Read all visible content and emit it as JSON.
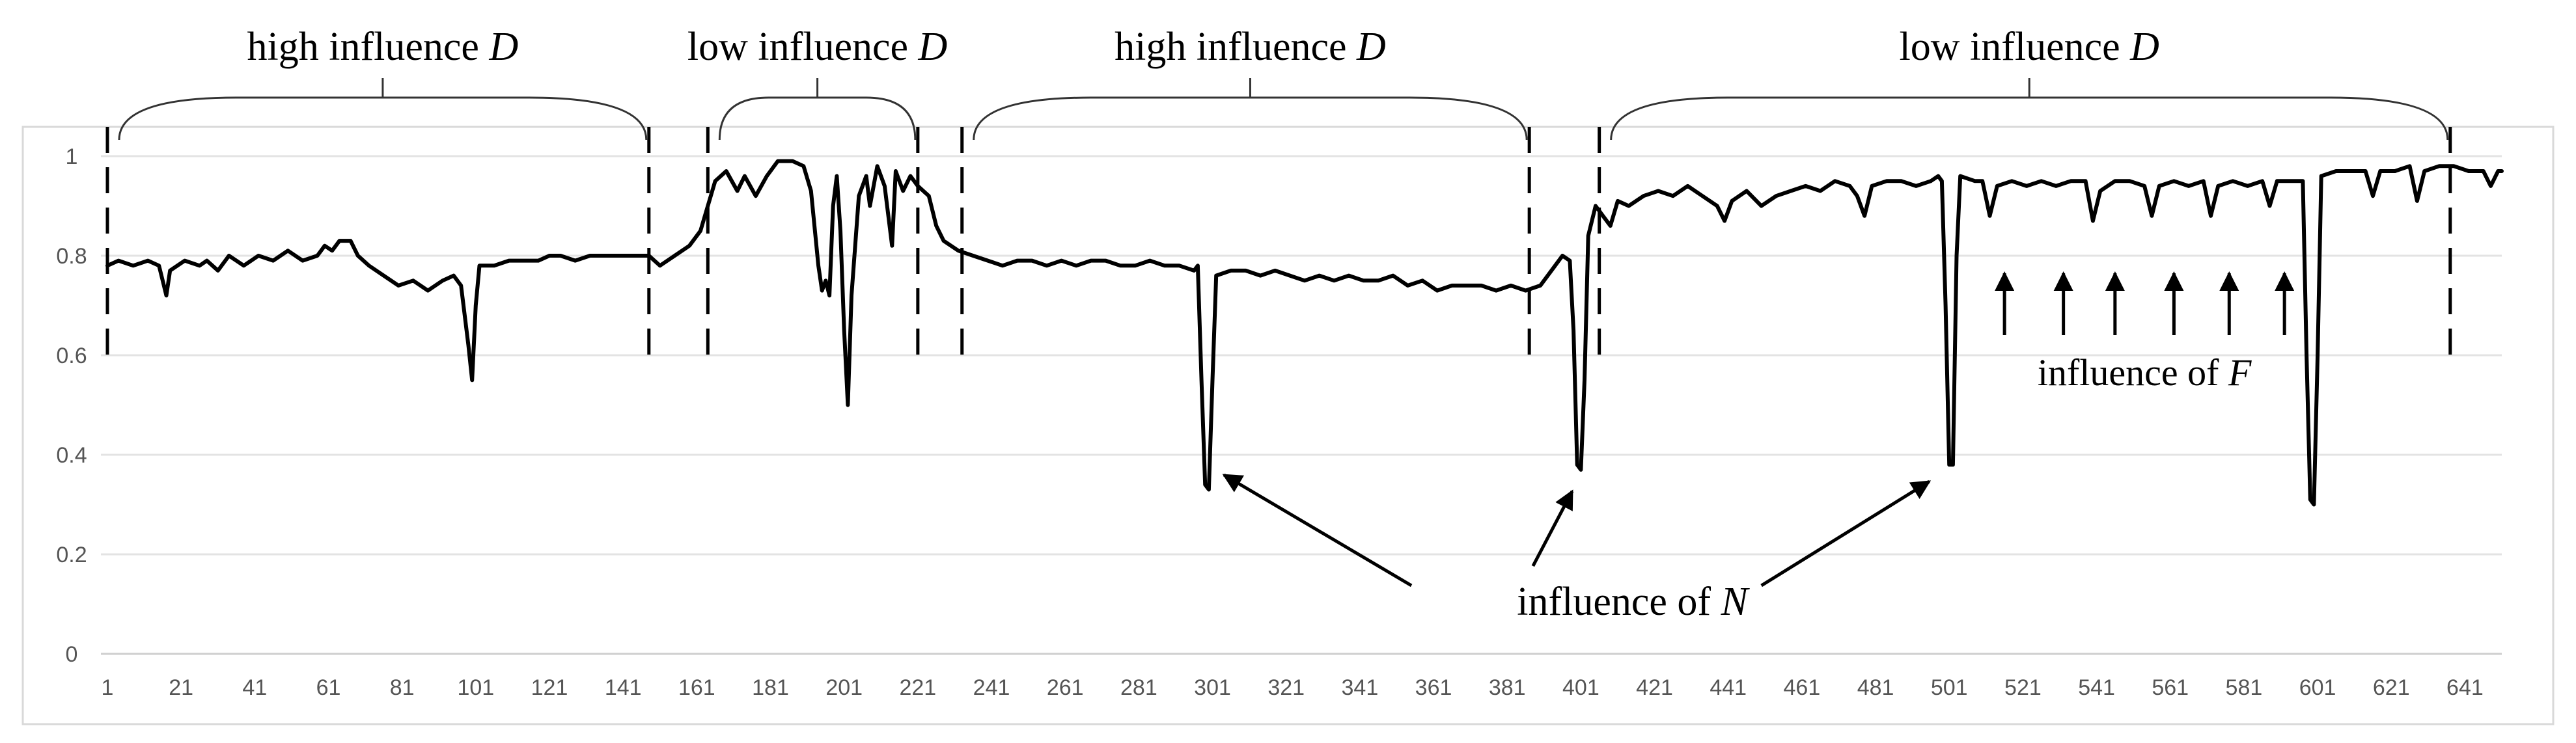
{
  "chart_data": {
    "type": "line",
    "title": "",
    "xlabel": "",
    "ylabel": "",
    "xlim": [
      1,
      651
    ],
    "ylim": [
      0,
      1.05
    ],
    "grid": true,
    "yticks": [
      "0",
      "0.2",
      "0.4",
      "0.6",
      "0.8",
      "1"
    ],
    "xticks": [
      "1",
      "21",
      "41",
      "61",
      "81",
      "101",
      "121",
      "141",
      "161",
      "181",
      "201",
      "221",
      "241",
      "261",
      "281",
      "301",
      "321",
      "341",
      "361",
      "381",
      "401",
      "421",
      "441",
      "461",
      "481",
      "501",
      "521",
      "541",
      "561",
      "581",
      "601",
      "621",
      "641"
    ],
    "series": [
      {
        "points": [
          [
            1,
            0.78
          ],
          [
            4,
            0.79
          ],
          [
            8,
            0.78
          ],
          [
            12,
            0.79
          ],
          [
            15,
            0.78
          ],
          [
            16,
            0.75
          ],
          [
            17,
            0.72
          ],
          [
            18,
            0.77
          ],
          [
            22,
            0.79
          ],
          [
            26,
            0.78
          ],
          [
            28,
            0.79
          ],
          [
            31,
            0.77
          ],
          [
            34,
            0.8
          ],
          [
            38,
            0.78
          ],
          [
            42,
            0.8
          ],
          [
            46,
            0.79
          ],
          [
            50,
            0.81
          ],
          [
            54,
            0.79
          ],
          [
            58,
            0.8
          ],
          [
            60,
            0.82
          ],
          [
            62,
            0.81
          ],
          [
            64,
            0.83
          ],
          [
            67,
            0.83
          ],
          [
            69,
            0.8
          ],
          [
            72,
            0.78
          ],
          [
            76,
            0.76
          ],
          [
            80,
            0.74
          ],
          [
            84,
            0.75
          ],
          [
            88,
            0.73
          ],
          [
            92,
            0.75
          ],
          [
            95,
            0.76
          ],
          [
            97,
            0.74
          ],
          [
            99,
            0.62
          ],
          [
            100,
            0.55
          ],
          [
            101,
            0.7
          ],
          [
            102,
            0.78
          ],
          [
            106,
            0.78
          ],
          [
            110,
            0.79
          ],
          [
            114,
            0.79
          ],
          [
            118,
            0.79
          ],
          [
            121,
            0.8
          ],
          [
            124,
            0.8
          ],
          [
            128,
            0.79
          ],
          [
            132,
            0.8
          ],
          [
            136,
            0.8
          ],
          [
            140,
            0.8
          ],
          [
            145,
            0.8
          ],
          [
            148,
            0.8
          ],
          [
            151,
            0.78
          ],
          [
            155,
            0.8
          ],
          [
            159,
            0.82
          ],
          [
            162,
            0.85
          ],
          [
            164,
            0.9
          ],
          [
            166,
            0.95
          ],
          [
            169,
            0.97
          ],
          [
            172,
            0.93
          ],
          [
            174,
            0.96
          ],
          [
            177,
            0.92
          ],
          [
            180,
            0.96
          ],
          [
            183,
            0.99
          ],
          [
            187,
            0.99
          ],
          [
            190,
            0.98
          ],
          [
            192,
            0.93
          ],
          [
            194,
            0.78
          ],
          [
            195,
            0.73
          ],
          [
            196,
            0.75
          ],
          [
            197,
            0.72
          ],
          [
            198,
            0.9
          ],
          [
            199,
            0.96
          ],
          [
            200,
            0.85
          ],
          [
            201,
            0.65
          ],
          [
            202,
            0.5
          ],
          [
            203,
            0.72
          ],
          [
            205,
            0.92
          ],
          [
            207,
            0.96
          ],
          [
            208,
            0.9
          ],
          [
            210,
            0.98
          ],
          [
            212,
            0.94
          ],
          [
            214,
            0.82
          ],
          [
            215,
            0.97
          ],
          [
            217,
            0.93
          ],
          [
            219,
            0.96
          ],
          [
            221,
            0.94
          ],
          [
            224,
            0.92
          ],
          [
            226,
            0.86
          ],
          [
            228,
            0.83
          ],
          [
            232,
            0.81
          ],
          [
            236,
            0.8
          ],
          [
            240,
            0.79
          ],
          [
            244,
            0.78
          ],
          [
            248,
            0.79
          ],
          [
            252,
            0.79
          ],
          [
            256,
            0.78
          ],
          [
            260,
            0.79
          ],
          [
            264,
            0.78
          ],
          [
            268,
            0.79
          ],
          [
            272,
            0.79
          ],
          [
            276,
            0.78
          ],
          [
            280,
            0.78
          ],
          [
            284,
            0.79
          ],
          [
            288,
            0.78
          ],
          [
            292,
            0.78
          ],
          [
            296,
            0.77
          ],
          [
            297,
            0.78
          ],
          [
            298,
            0.55
          ],
          [
            299,
            0.34
          ],
          [
            300,
            0.33
          ],
          [
            301,
            0.55
          ],
          [
            302,
            0.76
          ],
          [
            306,
            0.77
          ],
          [
            310,
            0.77
          ],
          [
            314,
            0.76
          ],
          [
            318,
            0.77
          ],
          [
            322,
            0.76
          ],
          [
            326,
            0.75
          ],
          [
            330,
            0.76
          ],
          [
            334,
            0.75
          ],
          [
            338,
            0.76
          ],
          [
            342,
            0.75
          ],
          [
            346,
            0.75
          ],
          [
            350,
            0.76
          ],
          [
            354,
            0.74
          ],
          [
            358,
            0.75
          ],
          [
            362,
            0.73
          ],
          [
            366,
            0.74
          ],
          [
            370,
            0.74
          ],
          [
            374,
            0.74
          ],
          [
            378,
            0.73
          ],
          [
            382,
            0.74
          ],
          [
            386,
            0.73
          ],
          [
            390,
            0.74
          ],
          [
            392,
            0.76
          ],
          [
            394,
            0.78
          ],
          [
            396,
            0.8
          ],
          [
            398,
            0.79
          ],
          [
            399,
            0.65
          ],
          [
            400,
            0.38
          ],
          [
            401,
            0.37
          ],
          [
            402,
            0.55
          ],
          [
            403,
            0.84
          ],
          [
            405,
            0.9
          ],
          [
            407,
            0.88
          ],
          [
            409,
            0.86
          ],
          [
            411,
            0.91
          ],
          [
            414,
            0.9
          ],
          [
            418,
            0.92
          ],
          [
            422,
            0.93
          ],
          [
            426,
            0.92
          ],
          [
            430,
            0.94
          ],
          [
            434,
            0.92
          ],
          [
            438,
            0.9
          ],
          [
            440,
            0.87
          ],
          [
            442,
            0.91
          ],
          [
            446,
            0.93
          ],
          [
            450,
            0.9
          ],
          [
            454,
            0.92
          ],
          [
            458,
            0.93
          ],
          [
            462,
            0.94
          ],
          [
            466,
            0.93
          ],
          [
            470,
            0.95
          ],
          [
            474,
            0.94
          ],
          [
            476,
            0.92
          ],
          [
            478,
            0.88
          ],
          [
            480,
            0.94
          ],
          [
            484,
            0.95
          ],
          [
            488,
            0.95
          ],
          [
            492,
            0.94
          ],
          [
            496,
            0.95
          ],
          [
            498,
            0.96
          ],
          [
            499,
            0.95
          ],
          [
            500,
            0.7
          ],
          [
            501,
            0.38
          ],
          [
            502,
            0.38
          ],
          [
            503,
            0.8
          ],
          [
            504,
            0.96
          ],
          [
            508,
            0.95
          ],
          [
            510,
            0.95
          ],
          [
            512,
            0.88
          ],
          [
            514,
            0.94
          ],
          [
            518,
            0.95
          ],
          [
            522,
            0.94
          ],
          [
            526,
            0.95
          ],
          [
            530,
            0.94
          ],
          [
            534,
            0.95
          ],
          [
            538,
            0.95
          ],
          [
            540,
            0.87
          ],
          [
            542,
            0.93
          ],
          [
            546,
            0.95
          ],
          [
            550,
            0.95
          ],
          [
            554,
            0.94
          ],
          [
            556,
            0.88
          ],
          [
            558,
            0.94
          ],
          [
            562,
            0.95
          ],
          [
            566,
            0.94
          ],
          [
            570,
            0.95
          ],
          [
            572,
            0.88
          ],
          [
            574,
            0.94
          ],
          [
            578,
            0.95
          ],
          [
            582,
            0.94
          ],
          [
            586,
            0.95
          ],
          [
            588,
            0.9
          ],
          [
            590,
            0.95
          ],
          [
            594,
            0.95
          ],
          [
            597,
            0.95
          ],
          [
            598,
            0.6
          ],
          [
            599,
            0.31
          ],
          [
            600,
            0.3
          ],
          [
            601,
            0.6
          ],
          [
            602,
            0.96
          ],
          [
            606,
            0.97
          ],
          [
            610,
            0.97
          ],
          [
            614,
            0.97
          ],
          [
            616,
            0.92
          ],
          [
            618,
            0.97
          ],
          [
            622,
            0.97
          ],
          [
            626,
            0.98
          ],
          [
            628,
            0.91
          ],
          [
            630,
            0.97
          ],
          [
            634,
            0.98
          ],
          [
            638,
            0.98
          ],
          [
            642,
            0.97
          ],
          [
            646,
            0.97
          ],
          [
            648,
            0.94
          ],
          [
            650,
            0.97
          ],
          [
            651,
            0.97
          ]
        ]
      }
    ],
    "segment_boundaries": [
      1,
      148,
      164,
      221,
      233,
      387,
      406,
      637
    ],
    "annotations": {
      "braces": [
        {
          "start": 1,
          "end": 148,
          "prefix": "high influence ",
          "var": "D"
        },
        {
          "start": 164,
          "end": 221,
          "prefix": "low influence ",
          "var": "D"
        },
        {
          "start": 233,
          "end": 387,
          "prefix": "high influence ",
          "var": "D"
        },
        {
          "start": 406,
          "end": 637,
          "prefix": "low influence ",
          "var": "D"
        }
      ],
      "influence_N": {
        "prefix": "influence of ",
        "var": "N",
        "targets": [
          [
            300,
            0.33
          ],
          [
            401,
            0.37
          ],
          [
            501,
            0.37
          ]
        ]
      },
      "influence_F": {
        "prefix": "influence of ",
        "var": "F",
        "arrows_at": [
          516,
          532,
          546,
          562,
          577,
          592
        ]
      }
    }
  }
}
